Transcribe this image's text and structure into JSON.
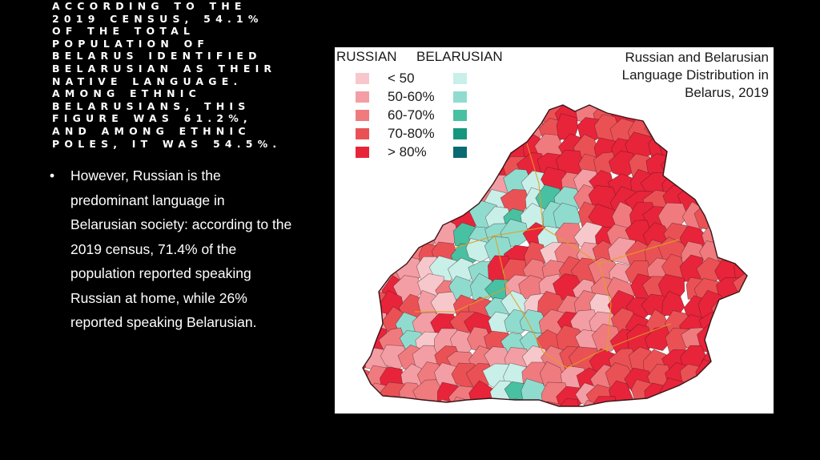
{
  "heading": "According to the 2019 census, 54.1% of the total population of Belarus identified Belarusian as their native language. Among ethnic Belarusians, this figure was 61.2%, and among ethnic Poles, it was 54.5%.",
  "bullet": {
    "marker": "•",
    "text": "However, Russian is the predominant language in Belarusian society: according to the 2019 census, 71.4% of the population reported speaking Russian at home, while 26% reported speaking Belarusian."
  },
  "map": {
    "title_lines": [
      "Russian and Belarusian",
      "Language Distribution in",
      "Belarus, 2019"
    ],
    "legend": {
      "russian_header": "RUSSIAN",
      "belarusian_header": "BELARUSIAN",
      "bins": [
        {
          "label": "< 50",
          "russian_color": "#f6c8cc",
          "belarusian_color": "#c9efe9"
        },
        {
          "label": "50-60%",
          "russian_color": "#f39ea4",
          "belarusian_color": "#8fdccf"
        },
        {
          "label": "60-70%",
          "russian_color": "#ef7b7f",
          "belarusian_color": "#48c0a2"
        },
        {
          "label": "70-80%",
          "russian_color": "#ea5155",
          "belarusian_color": "#14977d"
        },
        {
          "label": "> 80%",
          "russian_color": "#e8243a",
          "belarusian_color": "#0a6a72"
        }
      ]
    },
    "border_color": "#e0a020",
    "district_line_color": "#3a1418"
  }
}
